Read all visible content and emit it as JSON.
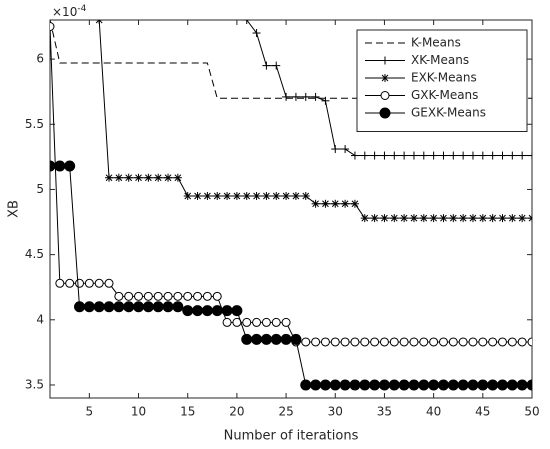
{
  "chart_data": {
    "type": "line",
    "xlabel": "Number of iterations",
    "ylabel": "XB",
    "y_multiplier_base": "×10",
    "y_multiplier_exponent": "-4",
    "x": [
      1,
      2,
      3,
      4,
      5,
      6,
      7,
      8,
      9,
      10,
      11,
      12,
      13,
      14,
      15,
      16,
      17,
      18,
      19,
      20,
      21,
      22,
      23,
      24,
      25,
      26,
      27,
      28,
      29,
      30,
      31,
      32,
      33,
      34,
      35,
      36,
      37,
      38,
      39,
      40,
      41,
      42,
      43,
      44,
      45,
      46,
      47,
      48,
      49,
      50
    ],
    "xlim": [
      1,
      50
    ],
    "xticks": [
      5,
      10,
      15,
      20,
      25,
      30,
      35,
      40,
      45,
      50
    ],
    "ylim": [
      3.4,
      6.3
    ],
    "yticks": [
      3.5,
      4,
      4.5,
      5,
      5.5,
      6
    ],
    "legend": "upper right",
    "series": [
      {
        "name": "K-Means",
        "color": "#000000",
        "dash": true,
        "marker": "none",
        "values": [
          6.3,
          5.97,
          5.97,
          5.97,
          5.97,
          5.97,
          5.97,
          5.97,
          5.97,
          5.97,
          5.97,
          5.97,
          5.97,
          5.97,
          5.97,
          5.97,
          5.97,
          5.7,
          5.7,
          5.7,
          5.7,
          5.7,
          5.7,
          5.7,
          5.7,
          5.7,
          5.7,
          5.7,
          5.7,
          5.7,
          5.7,
          5.7,
          5.7,
          5.7,
          5.7,
          5.7,
          5.7,
          5.7,
          5.7,
          5.7,
          5.7,
          5.7,
          5.7,
          5.7,
          5.7,
          5.7,
          5.7,
          5.7,
          5.7,
          5.7
        ]
      },
      {
        "name": "XK-Means",
        "color": "#000000",
        "dash": false,
        "marker": "plus",
        "values": [
          null,
          null,
          null,
          null,
          null,
          null,
          null,
          null,
          null,
          null,
          null,
          null,
          null,
          null,
          null,
          null,
          null,
          null,
          null,
          null,
          6.3,
          6.2,
          5.95,
          5.95,
          5.71,
          5.71,
          5.71,
          5.71,
          5.68,
          5.31,
          5.31,
          5.26,
          5.26,
          5.26,
          5.26,
          5.26,
          5.26,
          5.26,
          5.26,
          5.26,
          5.26,
          5.26,
          5.26,
          5.26,
          5.26,
          5.26,
          5.26,
          5.26,
          5.26,
          5.26
        ]
      },
      {
        "name": "EXK-Means",
        "color": "#000000",
        "dash": false,
        "marker": "star",
        "values": [
          null,
          null,
          null,
          null,
          null,
          6.3,
          5.09,
          5.09,
          5.09,
          5.09,
          5.09,
          5.09,
          5.09,
          5.09,
          4.95,
          4.95,
          4.95,
          4.95,
          4.95,
          4.95,
          4.95,
          4.95,
          4.95,
          4.95,
          4.95,
          4.95,
          4.95,
          4.89,
          4.89,
          4.89,
          4.89,
          4.89,
          4.78,
          4.78,
          4.78,
          4.78,
          4.78,
          4.78,
          4.78,
          4.78,
          4.78,
          4.78,
          4.78,
          4.78,
          4.78,
          4.78,
          4.78,
          4.78,
          4.78,
          4.78
        ]
      },
      {
        "name": "GXK-Means",
        "color": "#000000",
        "dash": false,
        "marker": "circle",
        "values": [
          6.25,
          4.28,
          4.28,
          4.28,
          4.28,
          4.28,
          4.28,
          4.18,
          4.18,
          4.18,
          4.18,
          4.18,
          4.18,
          4.18,
          4.18,
          4.18,
          4.18,
          4.18,
          3.98,
          3.98,
          3.98,
          3.98,
          3.98,
          3.98,
          3.98,
          3.83,
          3.83,
          3.83,
          3.83,
          3.83,
          3.83,
          3.83,
          3.83,
          3.83,
          3.83,
          3.83,
          3.83,
          3.83,
          3.83,
          3.83,
          3.83,
          3.83,
          3.83,
          3.83,
          3.83,
          3.83,
          3.83,
          3.83,
          3.83,
          3.83
        ]
      },
      {
        "name": "GEXK-Means",
        "color": "#000000",
        "dash": false,
        "marker": "filled-circle",
        "values": [
          5.18,
          5.18,
          5.18,
          4.1,
          4.1,
          4.1,
          4.1,
          4.1,
          4.1,
          4.1,
          4.1,
          4.1,
          4.1,
          4.1,
          4.07,
          4.07,
          4.07,
          4.07,
          4.07,
          4.07,
          3.85,
          3.85,
          3.85,
          3.85,
          3.85,
          3.85,
          3.5,
          3.5,
          3.5,
          3.5,
          3.5,
          3.5,
          3.5,
          3.5,
          3.5,
          3.5,
          3.5,
          3.5,
          3.5,
          3.5,
          3.5,
          3.5,
          3.5,
          3.5,
          3.5,
          3.5,
          3.5,
          3.5,
          3.5,
          3.5
        ]
      }
    ]
  }
}
